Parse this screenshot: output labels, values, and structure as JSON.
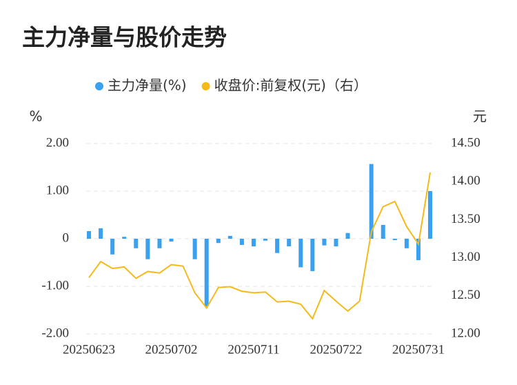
{
  "chart_data": {
    "type": "bar_line",
    "title": "主力净量与股价走势",
    "ylabel": "%",
    "y2label": "元",
    "categories": [
      "20250623",
      null,
      null,
      null,
      null,
      null,
      null,
      "20250702",
      null,
      null,
      null,
      null,
      null,
      null,
      "20250711",
      null,
      null,
      null,
      null,
      null,
      null,
      "20250722",
      null,
      null,
      null,
      null,
      null,
      null,
      "20250731",
      null
    ],
    "series": [
      {
        "name": "主力净量(%)",
        "type": "bar",
        "color": "#3aa0f0",
        "values": [
          0.16,
          0.22,
          -0.33,
          0.04,
          -0.2,
          -0.43,
          -0.2,
          -0.06,
          0,
          -0.43,
          -1.42,
          -0.09,
          0.06,
          -0.13,
          -0.16,
          -0.04,
          -0.3,
          -0.16,
          -0.6,
          -0.68,
          -0.14,
          -0.16,
          0.12,
          0,
          1.57,
          0.29,
          -0.03,
          -0.2,
          -0.45,
          1.0
        ]
      },
      {
        "name": "收盘价:前复权(元)（右）",
        "type": "line",
        "axis": "y2",
        "color": "#f5b918",
        "values": [
          12.74,
          12.95,
          12.86,
          12.88,
          12.73,
          12.82,
          12.8,
          12.91,
          12.89,
          12.54,
          12.34,
          12.61,
          12.62,
          12.56,
          12.54,
          12.55,
          12.42,
          12.43,
          12.39,
          12.2,
          12.57,
          12.43,
          12.3,
          12.43,
          13.34,
          13.67,
          13.74,
          13.41,
          13.18,
          14.12
        ]
      }
    ],
    "ylim": [
      -2,
      2
    ],
    "yticks": [
      {
        "value": 2,
        "label": "2.00"
      },
      {
        "value": 1,
        "label": "1.00"
      },
      0,
      {
        "value": -1,
        "label": "-1.00"
      },
      {
        "value": -2,
        "label": "-2.00"
      }
    ],
    "y2lim": [
      12,
      14.5
    ],
    "y2ticks": [
      {
        "value": 14.5,
        "label": "14.50"
      },
      {
        "value": 14,
        "label": "14.00"
      },
      {
        "value": 13.5,
        "label": "13.50"
      },
      {
        "value": 13,
        "label": "13.00"
      },
      {
        "value": 12.5,
        "label": "12.50"
      },
      {
        "value": 12,
        "label": "12.00"
      }
    ],
    "grid": true,
    "legend": "top"
  }
}
